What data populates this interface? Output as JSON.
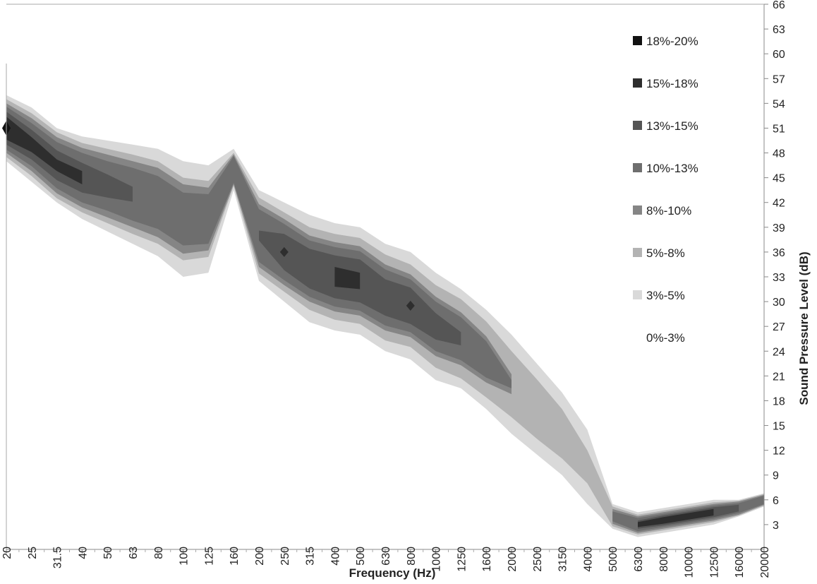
{
  "chart_data": {
    "type": "heatmap",
    "title": "",
    "xlabel": "Frequency (Hz)",
    "ylabel": "Sound Pressure Level (dB)",
    "x_categories": [
      "20",
      "25",
      "31.5",
      "40",
      "50",
      "63",
      "80",
      "100",
      "125",
      "160",
      "200",
      "250",
      "315",
      "400",
      "500",
      "630",
      "800",
      "1000",
      "1250",
      "1600",
      "2000",
      "2500",
      "3150",
      "4000",
      "5000",
      "6300",
      "8000",
      "10000",
      "12500",
      "16000",
      "20000"
    ],
    "y_ticks": [
      3,
      6,
      9,
      12,
      15,
      18,
      21,
      24,
      27,
      30,
      33,
      36,
      39,
      42,
      45,
      48,
      51,
      54,
      57,
      60,
      63,
      66
    ],
    "ylim": [
      0,
      66
    ],
    "legend_position": "top-right",
    "legend": [
      {
        "label": "18%-20%",
        "color": "#111111"
      },
      {
        "label": "15%-18%",
        "color": "#2e2e2e"
      },
      {
        "label": "13%-15%",
        "color": "#555555"
      },
      {
        "label": "10%-13%",
        "color": "#6e6e6e"
      },
      {
        "label": "8%-10%",
        "color": "#858585"
      },
      {
        "label": "5%-8%",
        "color": "#b3b3b3"
      },
      {
        "label": "3%-5%",
        "color": "#d9d9d9"
      },
      {
        "label": "0%-3%",
        "color": "#ffffff"
      }
    ],
    "level_bands_db": {
      "description_levels": [
        "3%-5%",
        "5%-8%",
        "8%-10%",
        "10%-13%",
        "13%-15%",
        "15%-18%",
        "18%-20%"
      ],
      "center": [
        51,
        49,
        46.5,
        45,
        44,
        43,
        42,
        40,
        40,
        46,
        38,
        36,
        34,
        33,
        32.5,
        30.5,
        29.5,
        27,
        25.5,
        23,
        20,
        17,
        14,
        10,
        4,
        3,
        3.5,
        4,
        4.5,
        5,
        6
      ],
      "widths": {
        "3%-5%": [
          4,
          4.5,
          4.5,
          5,
          5.5,
          6,
          6.5,
          7,
          6.5,
          2.5,
          5.5,
          6,
          6.5,
          6.5,
          6.5,
          6.5,
          6.5,
          6.5,
          6,
          6,
          6,
          5.5,
          5,
          4.5,
          1.5,
          1.5,
          1.5,
          1.5,
          1.5,
          1,
          0.8
        ],
        "5%-8%": [
          3.5,
          3.8,
          4,
          4.2,
          4.5,
          4.8,
          5,
          5,
          4.6,
          2,
          4.6,
          4.8,
          5,
          5.2,
          5.2,
          5.2,
          5,
          5,
          4.8,
          4.6,
          4,
          3.6,
          3,
          2,
          1.2,
          1.2,
          1.2,
          1.2,
          1.2,
          0.9,
          0.7
        ],
        "8%-10%": [
          3,
          3.2,
          3.4,
          3.6,
          3.8,
          4,
          4.2,
          4.2,
          3.8,
          1.8,
          3.8,
          4,
          4,
          4.2,
          4.2,
          4,
          3.8,
          3.6,
          3.2,
          2.8,
          1.2,
          0,
          0,
          0,
          0.9,
          1,
          1,
          1,
          1,
          0.8,
          0.6
        ],
        "10%-13%": [
          2.6,
          2.6,
          2.8,
          3,
          3,
          3.2,
          3.2,
          3.2,
          3,
          1.6,
          3.2,
          3.4,
          3.4,
          3.6,
          3.6,
          3.4,
          3.2,
          3,
          2.6,
          2.2,
          0.5,
          0,
          0,
          0,
          0.6,
          0.8,
          0.8,
          0.8,
          0.8,
          0.6,
          0.5
        ],
        "13%-15%": [
          2,
          1.8,
          1.8,
          1.8,
          1.4,
          0.9,
          0,
          0,
          0,
          0,
          0.6,
          2.2,
          2.4,
          2.6,
          2.6,
          2.2,
          2.2,
          1.6,
          0.8,
          0,
          0,
          0,
          0,
          0,
          0,
          0.5,
          0.6,
          0.6,
          0.6,
          0.4,
          0
        ],
        "15%-18%": [
          1.4,
          0.9,
          0.7,
          0.8,
          0,
          0,
          0,
          0,
          0,
          0,
          0,
          0.6,
          0,
          1.2,
          1,
          0,
          0.6,
          0,
          0,
          0,
          0,
          0,
          0,
          0,
          0,
          0.3,
          0.4,
          0.4,
          0.4,
          0,
          0
        ],
        "18%-20%": [
          0.9,
          0,
          0,
          0,
          0,
          0,
          0,
          0,
          0,
          0,
          0,
          0,
          0,
          0,
          0,
          0,
          0,
          0,
          0,
          0,
          0,
          0,
          0,
          0,
          0,
          0,
          0,
          0,
          0,
          0,
          0
        ]
      }
    },
    "grid": false
  }
}
